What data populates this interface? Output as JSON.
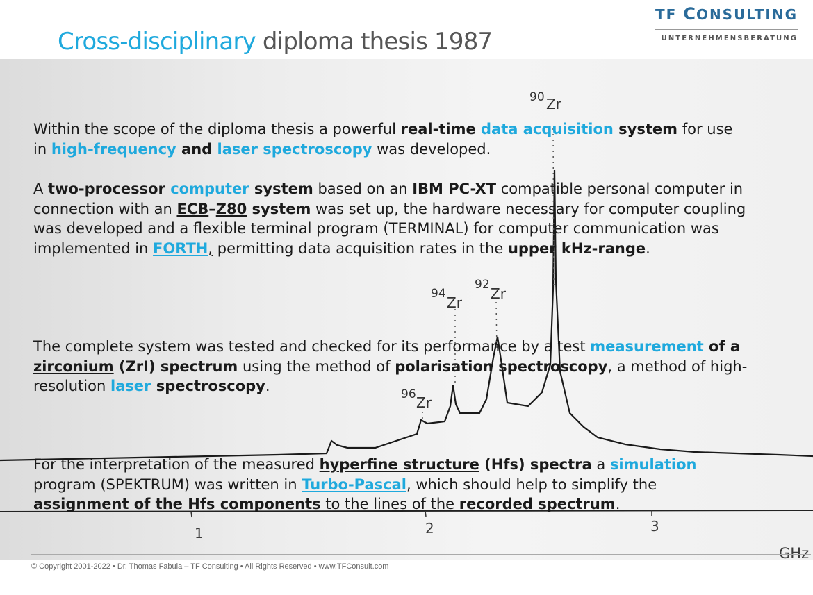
{
  "title": {
    "accent": "Cross-disciplinary",
    "rest": " diploma thesis 1987"
  },
  "logo": {
    "tf": "TF",
    "c": "C",
    "onsulting": "ONSULTING",
    "subtitle": "UNTERNEHMENSBERATUNG"
  },
  "spectrum_labels": {
    "zr90": {
      "mass": "90",
      "element": "Zr"
    },
    "zr92": {
      "mass": "92",
      "element": "Zr"
    },
    "zr94": {
      "mass": "94",
      "element": "Zr"
    },
    "zr96": {
      "mass": "96",
      "element": "Zr"
    },
    "tick1": "1",
    "tick2": "2",
    "tick3": "3",
    "unit": "GHz"
  },
  "paragraphs": {
    "p1": {
      "s1": "Within the scope of the diploma thesis a powerful ",
      "b1": "real-time ",
      "c1": "data acquisition",
      "b2": " system",
      "s2": " for use in ",
      "c2": "high-frequency",
      "b3": " and ",
      "c3": "laser spectroscopy",
      "s3": " was developed."
    },
    "p2": {
      "s1": "A ",
      "b1": "two-processor ",
      "c1": "computer",
      "b2": " system",
      "s2": " based on an ",
      "b3": "IBM PC-XT",
      "s3": " compatible personal computer in connection with an ",
      "u1": "ECB",
      "b4": "–",
      "u2": "Z80",
      "b5": " system",
      "s4": " was set up, the hardware necessary for computer coupling was developed and a flexible terminal program (TERMINAL) for computer communication was implemented in ",
      "l1": "FORTH",
      "u3": ",",
      "s5": " permitting data acquisition rates in the ",
      "b6": "upper kHz-range",
      "s6": "."
    },
    "p3": {
      "s1": "The complete system was tested and checked for its performance by a test ",
      "c1": "measurement",
      "b1": " of a ",
      "u1": "zirconium",
      "b2": " (ZrI) spectrum",
      "s2": " using the method of ",
      "b3": "polarisation spectroscopy",
      "s3": ", a method of high-resolution ",
      "c2": "laser",
      "b4": " spectroscopy",
      "s4": "."
    },
    "p4": {
      "s1": "For the interpretation of the measured ",
      "u1": "hyperfine structure",
      "b1": " (Hfs) spectra",
      "s2": " a ",
      "c1": "simulation",
      "s3": " program (SPEKTRUM) was written in ",
      "l1": "Turbo-Pascal",
      "s4": ", which should help to simplify the ",
      "b2": "assignment of the Hfs components",
      "s5": " to the lines of the ",
      "b3": "recorded spectrum",
      "s6": "."
    }
  },
  "footer": {
    "text": "© Copyright 2001-2022 • Dr. Thomas Fabula – TF Consulting • All Rights Reserved • www.TFConsult.com"
  },
  "colors": {
    "accent": "#1fa9dd",
    "logo": "#2a6b9a",
    "title_gray": "#555555"
  }
}
